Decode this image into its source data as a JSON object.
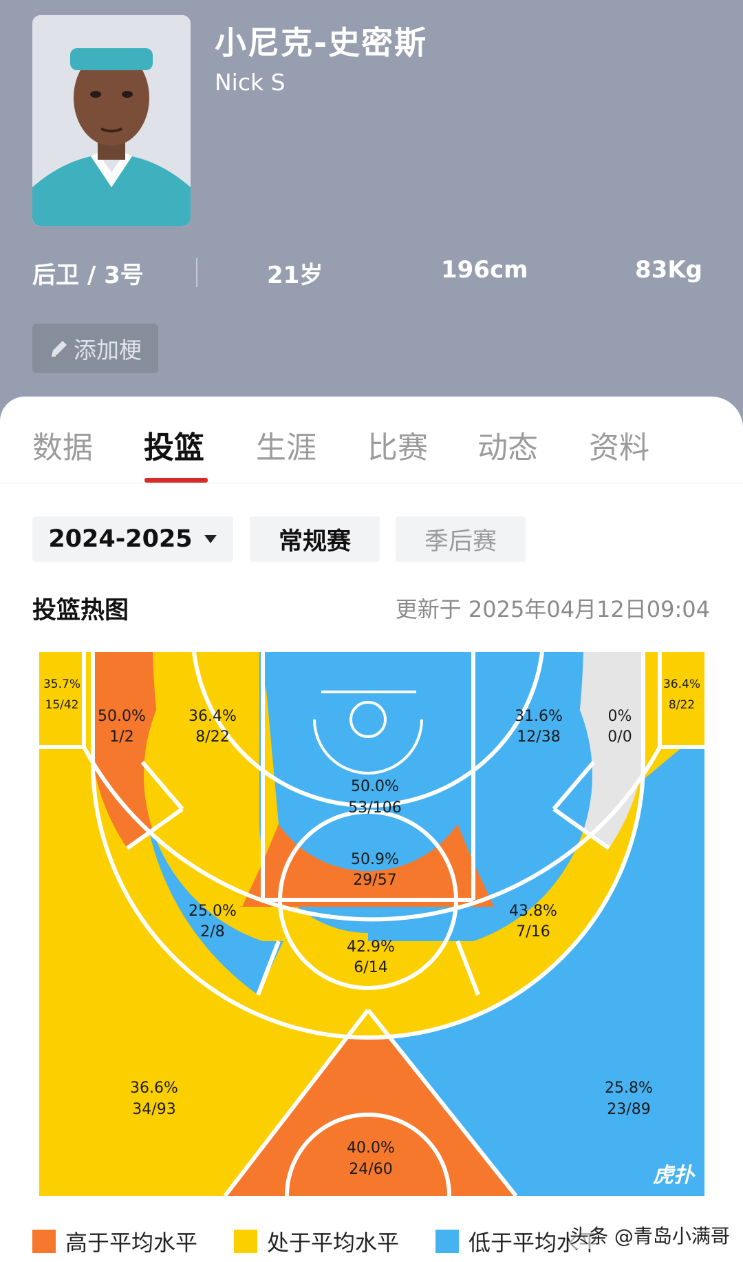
{
  "player": {
    "name_cn": "小尼克-史密斯",
    "name_en": "Nick S",
    "position": "后卫 / 3号",
    "age": "21岁",
    "height": "196cm",
    "weight": "83Kg",
    "add_tag_label": "添加梗",
    "jersey_color": "#3fb0bd"
  },
  "tabs": [
    {
      "label": "数据",
      "active": false
    },
    {
      "label": "投篮",
      "active": true
    },
    {
      "label": "生涯",
      "active": false
    },
    {
      "label": "比赛",
      "active": false
    },
    {
      "label": "动态",
      "active": false
    },
    {
      "label": "资料",
      "active": false
    }
  ],
  "filters": {
    "season": "2024-2025",
    "regular": "常规赛",
    "playoffs": "季后赛"
  },
  "heatmap": {
    "title": "投篮热图",
    "updated": "更新于 2025年04月12日09:04",
    "logo_text": "虎扑",
    "zones": {
      "left_corner_3": {
        "pct": "35.7%",
        "made_att": "15/42",
        "level": "average"
      },
      "right_corner_3": {
        "pct": "36.4%",
        "made_att": "8/22",
        "level": "average"
      },
      "left_baseline_mid": {
        "pct": "50.0%",
        "made_att": "1/2",
        "level": "above"
      },
      "left_short_mid": {
        "pct": "36.4%",
        "made_att": "8/22",
        "level": "average"
      },
      "restricted_area": {
        "pct": "50.0%",
        "made_att": "53/106",
        "level": "below"
      },
      "right_short_mid": {
        "pct": "31.6%",
        "made_att": "12/38",
        "level": "below"
      },
      "right_baseline_mid": {
        "pct": "0%",
        "made_att": "0/0",
        "level": "none"
      },
      "paint": {
        "pct": "50.9%",
        "made_att": "29/57",
        "level": "above"
      },
      "left_wing_mid": {
        "pct": "25.0%",
        "made_att": "2/8",
        "level": "below"
      },
      "right_wing_mid": {
        "pct": "43.8%",
        "made_att": "7/16",
        "level": "average"
      },
      "top_mid": {
        "pct": "42.9%",
        "made_att": "6/14",
        "level": "average"
      },
      "left_wing_3": {
        "pct": "36.6%",
        "made_att": "34/93",
        "level": "average"
      },
      "top_3": {
        "pct": "40.0%",
        "made_att": "24/60",
        "level": "above"
      },
      "right_wing_3": {
        "pct": "25.8%",
        "made_att": "23/89",
        "level": "below"
      }
    }
  },
  "legend": [
    {
      "label": "高于平均水平",
      "color": "#f6782d"
    },
    {
      "label": "处于平均水平",
      "color": "#fcd000"
    },
    {
      "label": "低于平均水平",
      "color": "#46b2f2"
    }
  ],
  "colors": {
    "above": "#f6782d",
    "average": "#fcd000",
    "below": "#46b2f2",
    "none": "#e5e5e5",
    "header_bg": "#979eaf",
    "tab_accent": "#d62b2b"
  },
  "watermark": "头条 @青岛小满哥"
}
